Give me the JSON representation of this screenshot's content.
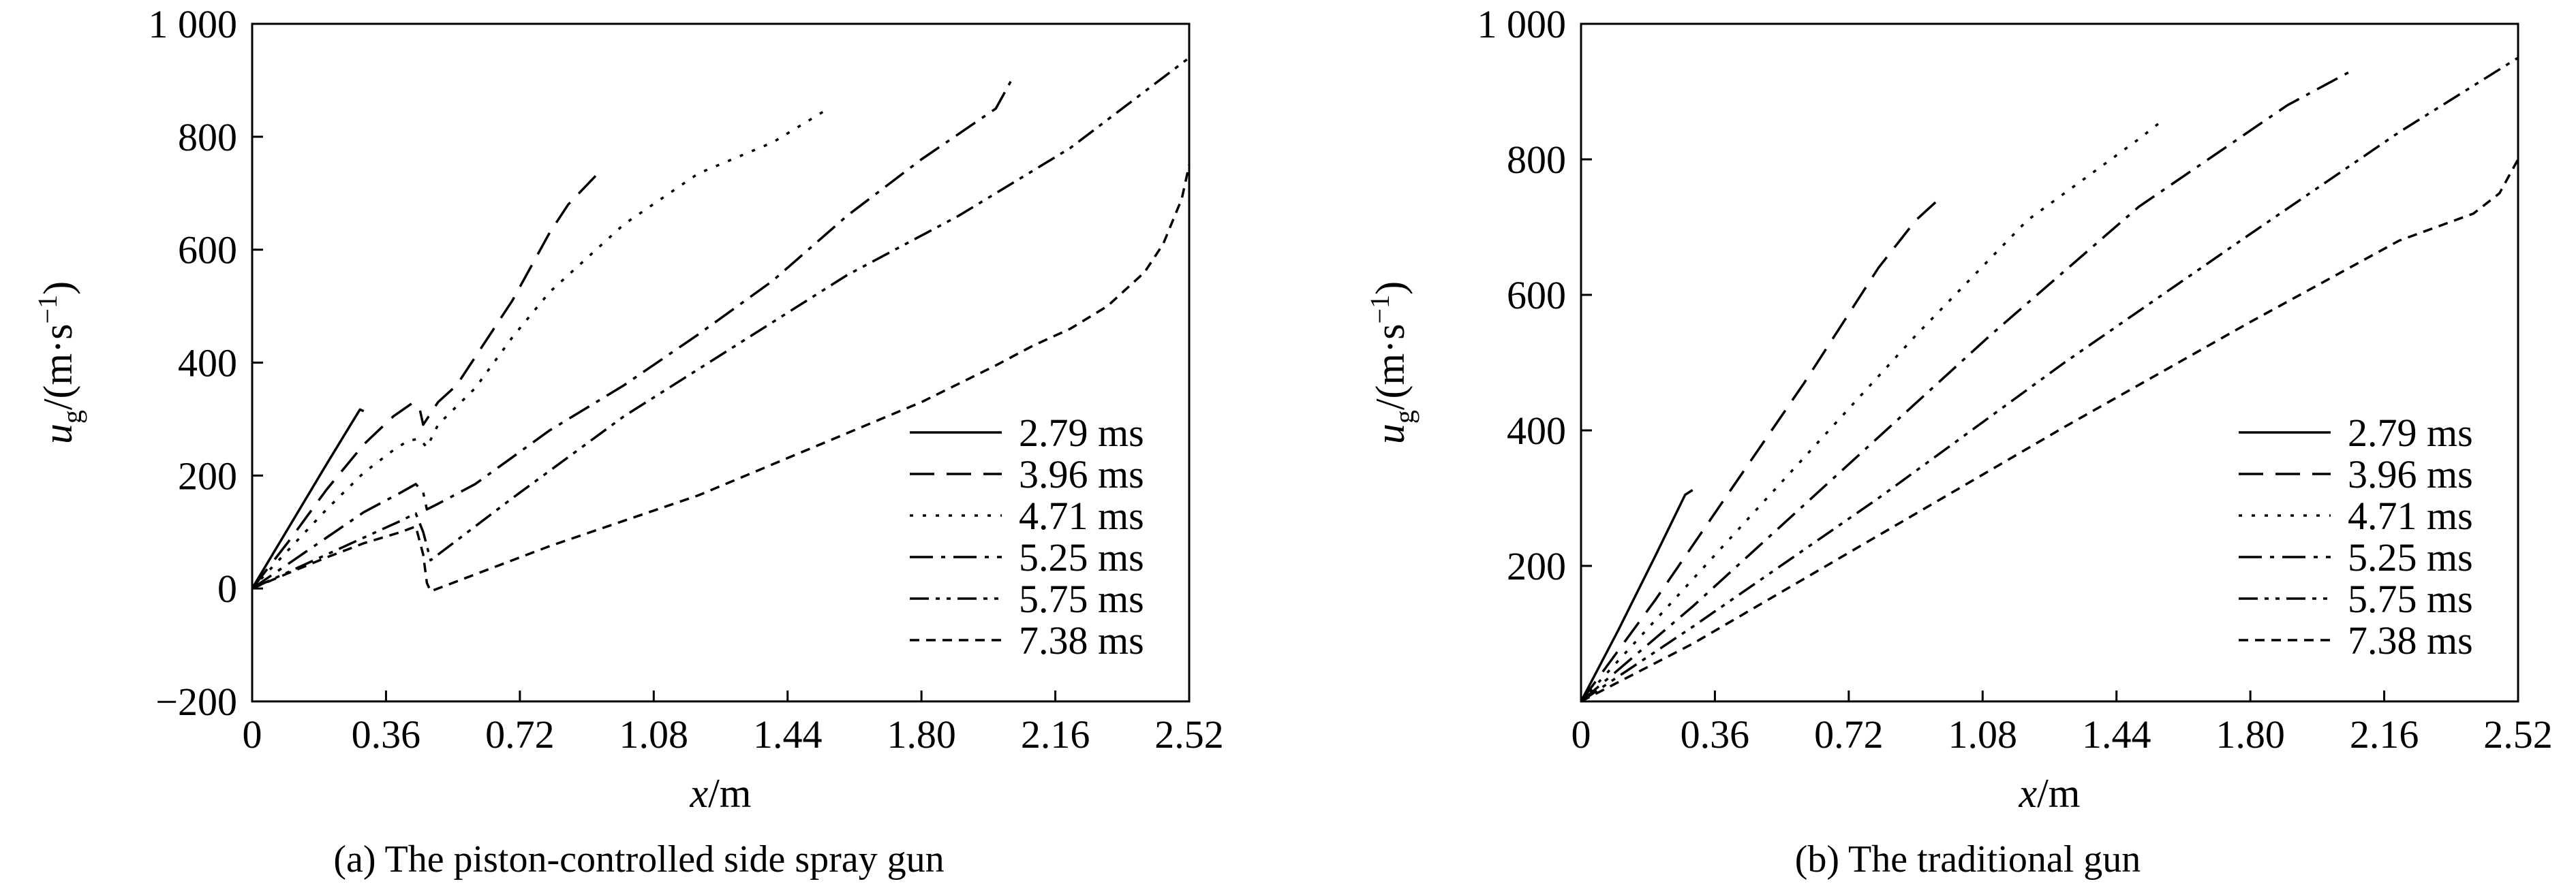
{
  "chart_data": [
    {
      "type": "line",
      "caption": "(a) The piston-controlled side spray gun",
      "xlabel": {
        "var": "x",
        "unit": "/m"
      },
      "ylabel": {
        "var": "u",
        "sub": "g",
        "unit": "/(m·s",
        "sup": "−1",
        "close": ")"
      },
      "xlim": [
        0,
        2.52
      ],
      "ylim": [
        -200,
        1000
      ],
      "xticks": [
        0,
        0.36,
        0.72,
        1.08,
        1.44,
        1.8,
        2.16,
        2.52
      ],
      "xtick_labels": [
        "0",
        "0.36",
        "0.72",
        "1.08",
        "1.44",
        "1.80",
        "2.16",
        "2.52"
      ],
      "yticks": [
        -200,
        0,
        200,
        400,
        600,
        800,
        1000
      ],
      "ytick_labels": [
        "−200",
        "0",
        "200",
        "400",
        "600",
        "800",
        "1 000"
      ],
      "legend_position": "lower-right",
      "series": [
        {
          "name": "2.79 ms",
          "style": "solid",
          "points": [
            [
              0,
              0
            ],
            [
              0.1,
              110
            ],
            [
              0.2,
              220
            ],
            [
              0.29,
              317
            ],
            [
              0.3,
              314
            ]
          ]
        },
        {
          "name": "3.96 ms",
          "style": "dashed",
          "points": [
            [
              0,
              0
            ],
            [
              0.1,
              85
            ],
            [
              0.2,
              175
            ],
            [
              0.3,
              255
            ],
            [
              0.38,
              305
            ],
            [
              0.43,
              328
            ],
            [
              0.45,
              320
            ],
            [
              0.46,
              290
            ],
            [
              0.5,
              330
            ],
            [
              0.55,
              360
            ],
            [
              0.6,
              410
            ],
            [
              0.7,
              510
            ],
            [
              0.8,
              630
            ],
            [
              0.85,
              680
            ],
            [
              0.93,
              735
            ]
          ]
        },
        {
          "name": "4.71 ms",
          "style": "dotted",
          "points": [
            [
              0,
              0
            ],
            [
              0.1,
              70
            ],
            [
              0.2,
              140
            ],
            [
              0.3,
              205
            ],
            [
              0.38,
              245
            ],
            [
              0.42,
              262
            ],
            [
              0.45,
              265
            ],
            [
              0.47,
              250
            ],
            [
              0.5,
              290
            ],
            [
              0.6,
              355
            ],
            [
              0.7,
              445
            ],
            [
              0.8,
              525
            ],
            [
              1.0,
              645
            ],
            [
              1.2,
              735
            ],
            [
              1.4,
              790
            ],
            [
              1.55,
              850
            ]
          ]
        },
        {
          "name": "5.25 ms",
          "style": "dashdot",
          "points": [
            [
              0,
              0
            ],
            [
              0.1,
              45
            ],
            [
              0.2,
              90
            ],
            [
              0.3,
              135
            ],
            [
              0.4,
              170
            ],
            [
              0.44,
              185
            ],
            [
              0.46,
              170
            ],
            [
              0.47,
              140
            ],
            [
              0.5,
              150
            ],
            [
              0.6,
              185
            ],
            [
              0.8,
              280
            ],
            [
              1.0,
              360
            ],
            [
              1.2,
              450
            ],
            [
              1.4,
              545
            ],
            [
              1.6,
              660
            ],
            [
              1.8,
              760
            ],
            [
              2.0,
              850
            ],
            [
              2.05,
              910
            ]
          ]
        },
        {
          "name": "5.75 ms",
          "style": "dashdotdot",
          "points": [
            [
              0,
              0
            ],
            [
              0.1,
              30
            ],
            [
              0.2,
              60
            ],
            [
              0.3,
              90
            ],
            [
              0.4,
              120
            ],
            [
              0.44,
              133
            ],
            [
              0.46,
              100
            ],
            [
              0.48,
              50
            ],
            [
              0.5,
              60
            ],
            [
              0.7,
              160
            ],
            [
              1.0,
              305
            ],
            [
              1.3,
              430
            ],
            [
              1.6,
              555
            ],
            [
              1.9,
              660
            ],
            [
              2.2,
              780
            ],
            [
              2.52,
              940
            ]
          ]
        },
        {
          "name": "7.38 ms",
          "style": "shortdash",
          "points": [
            [
              0,
              0
            ],
            [
              0.1,
              28
            ],
            [
              0.2,
              55
            ],
            [
              0.3,
              80
            ],
            [
              0.4,
              100
            ],
            [
              0.44,
              110
            ],
            [
              0.46,
              60
            ],
            [
              0.47,
              10
            ],
            [
              0.48,
              -5
            ],
            [
              0.6,
              25
            ],
            [
              0.8,
              75
            ],
            [
              1.0,
              120
            ],
            [
              1.2,
              165
            ],
            [
              1.4,
              220
            ],
            [
              1.6,
              275
            ],
            [
              1.8,
              330
            ],
            [
              2.0,
              395
            ],
            [
              2.1,
              430
            ],
            [
              2.2,
              460
            ],
            [
              2.3,
              500
            ],
            [
              2.4,
              560
            ],
            [
              2.45,
              610
            ],
            [
              2.5,
              690
            ],
            [
              2.52,
              750
            ]
          ]
        }
      ]
    },
    {
      "type": "line",
      "caption": "(b) The traditional gun",
      "xlabel": {
        "var": "x",
        "unit": "/m"
      },
      "ylabel": {
        "var": "u",
        "sub": "g",
        "unit": "/(m·s",
        "sup": "−1",
        "close": ")"
      },
      "xlim": [
        0,
        2.52
      ],
      "ylim": [
        0,
        1000
      ],
      "xticks": [
        0,
        0.36,
        0.72,
        1.08,
        1.44,
        1.8,
        2.16,
        2.52
      ],
      "xtick_labels": [
        "0",
        "0.36",
        "0.72",
        "1.08",
        "1.44",
        "1.80",
        "2.16",
        "2.52"
      ],
      "yticks": [
        200,
        400,
        600,
        800,
        1000
      ],
      "ytick_labels": [
        "200",
        "400",
        "600",
        "800",
        "1 000"
      ],
      "legend_position": "lower-right",
      "series": [
        {
          "name": "2.79 ms",
          "style": "solid",
          "points": [
            [
              0,
              0
            ],
            [
              0.1,
              105
            ],
            [
              0.2,
              215
            ],
            [
              0.28,
              305
            ],
            [
              0.3,
              312
            ]
          ]
        },
        {
          "name": "3.96 ms",
          "style": "dashed",
          "points": [
            [
              0,
              0
            ],
            [
              0.2,
              150
            ],
            [
              0.4,
              310
            ],
            [
              0.6,
              470
            ],
            [
              0.8,
              640
            ],
            [
              0.9,
              710
            ],
            [
              0.97,
              745
            ]
          ]
        },
        {
          "name": "4.71 ms",
          "style": "dotted",
          "points": [
            [
              0,
              0
            ],
            [
              0.3,
              180
            ],
            [
              0.6,
              360
            ],
            [
              0.9,
              540
            ],
            [
              1.2,
              710
            ],
            [
              1.5,
              830
            ],
            [
              1.57,
              860
            ]
          ]
        },
        {
          "name": "5.25 ms",
          "style": "dashdot",
          "points": [
            [
              0,
              0
            ],
            [
              0.3,
              140
            ],
            [
              0.7,
              340
            ],
            [
              1.1,
              540
            ],
            [
              1.5,
              730
            ],
            [
              1.9,
              880
            ],
            [
              2.07,
              930
            ]
          ]
        },
        {
          "name": "5.75 ms",
          "style": "dashdotdot",
          "points": [
            [
              0,
              0
            ],
            [
              0.3,
              110
            ],
            [
              0.8,
              300
            ],
            [
              1.3,
              500
            ],
            [
              1.8,
              690
            ],
            [
              2.2,
              840
            ],
            [
              2.52,
              950
            ]
          ]
        },
        {
          "name": "7.38 ms",
          "style": "shortdash",
          "points": [
            [
              0,
              0
            ],
            [
              0.3,
              85
            ],
            [
              0.8,
              245
            ],
            [
              1.3,
              405
            ],
            [
              1.8,
              560
            ],
            [
              2.2,
              680
            ],
            [
              2.4,
              720
            ],
            [
              2.47,
              750
            ],
            [
              2.52,
              800
            ]
          ]
        }
      ]
    }
  ]
}
